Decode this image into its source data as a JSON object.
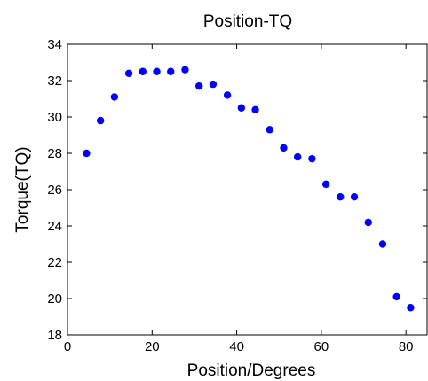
{
  "chart_data": {
    "type": "scatter",
    "title": "Position-TQ",
    "xlabel": "Position/Degrees",
    "ylabel": "Torque(TQ)",
    "xlim": [
      0,
      85
    ],
    "ylim": [
      18,
      34
    ],
    "xticks": [
      0,
      20,
      40,
      60,
      80
    ],
    "yticks": [
      18,
      20,
      22,
      24,
      26,
      28,
      30,
      32,
      34
    ],
    "grid": false,
    "marker_color": "#0000ff",
    "series": [
      {
        "x": [
          4.5,
          7.8,
          11.1,
          14.5,
          17.8,
          21.1,
          24.4,
          27.8,
          31.1,
          34.4,
          37.8,
          41.1,
          44.4,
          47.8,
          51.1,
          54.4,
          57.8,
          61.1,
          64.5,
          67.8,
          71.1,
          74.5,
          77.8,
          81.1
        ],
        "y": [
          28.0,
          29.8,
          31.1,
          32.4,
          32.5,
          32.5,
          32.5,
          32.6,
          31.7,
          31.8,
          31.2,
          30.5,
          30.4,
          29.3,
          28.3,
          27.8,
          27.7,
          26.3,
          25.6,
          25.6,
          24.2,
          23.0,
          20.1,
          19.5
        ]
      }
    ]
  }
}
